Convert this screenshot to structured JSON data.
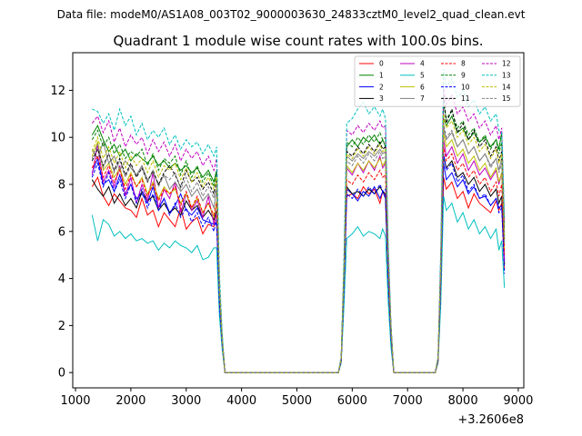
{
  "chart_data": {
    "type": "line",
    "suptitle": "Data file: modeM0/AS1A08_003T02_9000003630_24833cztM0_level2_quad_clean.evt",
    "title": "Quadrant 1 module wise count rates with 100.0s bins.",
    "xlabel": "",
    "ylabel": "",
    "x_offset_label": "+3.2606e8",
    "xlim": [
      950,
      9100
    ],
    "ylim": [
      -0.65,
      13.6
    ],
    "xticks": [
      1000,
      2000,
      3000,
      4000,
      5000,
      6000,
      7000,
      8000,
      9000
    ],
    "yticks": [
      0,
      2,
      4,
      6,
      8,
      10,
      12
    ],
    "x": [
      1300,
      1400,
      1500,
      1600,
      1700,
      1800,
      1900,
      2000,
      2100,
      2200,
      2300,
      2400,
      2500,
      2600,
      2700,
      2800,
      2900,
      3000,
      3100,
      3200,
      3300,
      3400,
      3500,
      3550,
      3600,
      3650,
      3700,
      3750,
      3800,
      5700,
      5750,
      5800,
      5850,
      5900,
      6000,
      6100,
      6200,
      6300,
      6400,
      6500,
      6550,
      6600,
      6650,
      6700,
      6750,
      7400,
      7500,
      7550,
      7600,
      7650,
      7700,
      7800,
      7900,
      8000,
      8100,
      8200,
      8300,
      8400,
      8500,
      8600,
      8650,
      8700,
      8750
    ],
    "legend": {
      "position": "top-right",
      "columns": 4
    },
    "series": [
      {
        "name": "0",
        "color": "#ff0000",
        "dash": false,
        "values": [
          7.9,
          8.3,
          7.5,
          7.1,
          7.6,
          7.3,
          7.0,
          6.9,
          6.6,
          7.4,
          6.7,
          6.9,
          6.2,
          6.8,
          6.5,
          6.2,
          7.0,
          6.1,
          6.4,
          6.6,
          5.9,
          6.3,
          6.2,
          6.8,
          3.0,
          1.2,
          0.0,
          0.0,
          0.0,
          0.0,
          0.0,
          0.5,
          3.5,
          7.5,
          7.6,
          7.4,
          7.9,
          7.6,
          7.8,
          7.2,
          7.7,
          7.5,
          4.0,
          1.5,
          0.0,
          0.0,
          0.0,
          0.5,
          3.5,
          8.3,
          7.8,
          8.1,
          7.4,
          7.7,
          7.0,
          7.6,
          7.2,
          7.0,
          6.8,
          7.3,
          6.9,
          7.2,
          4.4
        ]
      },
      {
        "name": "1",
        "color": "#008000",
        "dash": false,
        "values": [
          10.1,
          10.5,
          9.9,
          9.4,
          9.7,
          9.2,
          9.5,
          9.0,
          9.3,
          9.1,
          8.9,
          9.2,
          8.8,
          9.0,
          8.7,
          8.9,
          8.6,
          8.8,
          8.5,
          8.7,
          8.3,
          8.6,
          8.1,
          8.6,
          3.6,
          1.5,
          0.0,
          0.0,
          0.0,
          0.0,
          0.0,
          0.6,
          4.3,
          9.6,
          9.9,
          9.6,
          10.0,
          9.8,
          10.1,
          9.7,
          9.9,
          9.6,
          5.0,
          2.0,
          0.0,
          0.0,
          0.0,
          0.6,
          4.7,
          10.8,
          10.5,
          10.9,
          10.2,
          10.4,
          9.9,
          10.2,
          9.8,
          10.0,
          9.6,
          9.9,
          9.5,
          10.2,
          5.8
        ]
      },
      {
        "name": "2",
        "color": "#0000ff",
        "dash": false,
        "values": [
          8.5,
          9.1,
          8.0,
          8.2,
          7.7,
          8.4,
          7.6,
          8.0,
          7.4,
          7.6,
          7.2,
          7.9,
          7.0,
          7.4,
          6.8,
          7.1,
          7.6,
          6.9,
          6.7,
          7.0,
          6.5,
          6.4,
          6.3,
          6.4,
          3.0,
          1.2,
          0.0,
          0.0,
          0.0,
          0.0,
          0.0,
          0.5,
          3.6,
          7.8,
          7.6,
          7.3,
          7.7,
          7.5,
          7.9,
          7.4,
          7.7,
          7.4,
          4.0,
          1.5,
          0.0,
          0.0,
          0.0,
          0.5,
          3.7,
          8.9,
          8.2,
          8.5,
          7.9,
          8.2,
          7.6,
          7.9,
          7.4,
          7.5,
          7.1,
          7.4,
          7.0,
          7.1,
          4.8
        ]
      },
      {
        "name": "3",
        "color": "#000000",
        "dash": false,
        "values": [
          8.2,
          7.8,
          7.5,
          7.9,
          7.2,
          7.6,
          7.1,
          7.4,
          7.0,
          7.7,
          7.3,
          7.5,
          6.9,
          7.2,
          6.8,
          7.0,
          6.7,
          7.3,
          6.9,
          7.1,
          6.6,
          6.9,
          6.5,
          6.9,
          3.1,
          1.2,
          0.0,
          0.0,
          0.0,
          0.0,
          0.0,
          0.5,
          3.6,
          7.9,
          7.6,
          7.7,
          7.5,
          7.8,
          7.6,
          7.9,
          7.7,
          7.6,
          4.0,
          1.5,
          0.0,
          0.0,
          0.0,
          0.5,
          3.8,
          9.2,
          8.7,
          9.0,
          8.3,
          8.5,
          8.0,
          8.3,
          7.7,
          8.0,
          7.5,
          7.8,
          7.2,
          7.5,
          4.6
        ]
      },
      {
        "name": "4",
        "color": "#bf00bf",
        "dash": false,
        "values": [
          8.4,
          9.7,
          8.1,
          8.6,
          7.9,
          8.8,
          7.5,
          8.3,
          7.2,
          8.0,
          7.3,
          8.5,
          7.0,
          7.8,
          7.4,
          8.1,
          6.8,
          7.6,
          6.9,
          7.3,
          6.6,
          7.5,
          6.3,
          6.8,
          3.1,
          1.2,
          0.0,
          0.0,
          0.0,
          0.0,
          0.0,
          0.5,
          3.8,
          8.7,
          8.4,
          8.9,
          8.5,
          9.0,
          8.6,
          9.2,
          8.7,
          8.9,
          4.5,
          1.7,
          0.0,
          0.0,
          0.0,
          0.5,
          4.0,
          9.9,
          9.2,
          9.6,
          8.9,
          9.3,
          8.6,
          9.0,
          8.4,
          8.7,
          8.2,
          8.6,
          8.0,
          8.5,
          4.7
        ]
      },
      {
        "name": "5",
        "color": "#00bfbf",
        "dash": false,
        "values": [
          6.7,
          5.6,
          6.5,
          6.3,
          5.8,
          6.0,
          5.7,
          5.9,
          5.6,
          5.7,
          5.5,
          5.6,
          5.2,
          5.5,
          5.3,
          5.6,
          5.4,
          5.3,
          5.1,
          5.4,
          4.8,
          4.9,
          5.3,
          5.3,
          2.4,
          1.0,
          0.0,
          0.0,
          0.0,
          0.0,
          0.0,
          0.4,
          2.8,
          5.7,
          5.9,
          6.2,
          5.8,
          6.0,
          5.9,
          5.7,
          6.1,
          5.8,
          3.0,
          1.1,
          0.0,
          0.0,
          0.0,
          0.4,
          2.9,
          7.5,
          6.9,
          7.2,
          6.4,
          6.8,
          6.1,
          6.5,
          5.9,
          6.2,
          5.7,
          6.1,
          5.2,
          5.6,
          3.6
        ]
      },
      {
        "name": "6",
        "color": "#bfbf00",
        "dash": false,
        "values": [
          9.2,
          9.8,
          8.6,
          8.9,
          8.3,
          8.7,
          8.0,
          8.5,
          7.9,
          8.3,
          7.6,
          8.1,
          7.4,
          7.9,
          7.6,
          7.8,
          7.2,
          7.6,
          7.0,
          7.4,
          6.8,
          7.2,
          6.6,
          7.3,
          3.3,
          1.3,
          0.0,
          0.0,
          0.0,
          0.0,
          0.0,
          0.5,
          3.9,
          8.8,
          8.5,
          8.9,
          8.6,
          9.0,
          8.7,
          9.1,
          8.8,
          9.0,
          4.6,
          1.8,
          0.0,
          0.0,
          0.0,
          0.5,
          4.1,
          10.2,
          9.6,
          9.9,
          9.2,
          9.5,
          8.9,
          9.2,
          8.6,
          8.9,
          8.3,
          8.7,
          8.1,
          8.5,
          5.2
        ]
      },
      {
        "name": "7",
        "color": "#7f7f7f",
        "dash": false,
        "values": [
          9.5,
          9.1,
          9.8,
          8.9,
          9.2,
          8.6,
          9.0,
          8.7,
          8.4,
          8.8,
          8.2,
          8.5,
          8.0,
          8.4,
          7.8,
          8.1,
          7.7,
          8.0,
          7.5,
          7.8,
          7.3,
          7.6,
          7.0,
          7.8,
          3.4,
          1.4,
          0.0,
          0.0,
          0.0,
          0.0,
          0.0,
          0.5,
          4.1,
          9.2,
          9.0,
          9.3,
          9.1,
          9.4,
          9.2,
          9.5,
          9.3,
          9.4,
          4.7,
          1.8,
          0.0,
          0.0,
          0.0,
          0.5,
          4.3,
          10.4,
          9.9,
          10.2,
          9.6,
          9.9,
          9.3,
          9.6,
          9.0,
          9.3,
          8.8,
          9.1,
          8.6,
          9.1,
          5.4
        ]
      },
      {
        "name": "8",
        "color": "#ff0000",
        "dash": true,
        "values": [
          8.7,
          9.2,
          8.3,
          8.8,
          8.1,
          8.6,
          7.8,
          8.4,
          7.9,
          8.2,
          7.5,
          8.0,
          7.3,
          7.8,
          7.6,
          7.9,
          7.1,
          7.7,
          7.0,
          7.5,
          6.8,
          7.2,
          6.7,
          7.2,
          3.3,
          1.3,
          0.0,
          0.0,
          0.0,
          0.0,
          0.0,
          0.5,
          3.8,
          8.2,
          8.0,
          8.4,
          8.1,
          8.5,
          8.2,
          8.6,
          8.3,
          8.4,
          4.2,
          1.6,
          0.0,
          0.0,
          0.0,
          0.5,
          4.0,
          9.6,
          9.0,
          9.3,
          8.6,
          8.9,
          8.3,
          8.6,
          8.0,
          8.3,
          7.7,
          8.1,
          7.5,
          8.0,
          5.0
        ]
      },
      {
        "name": "9",
        "color": "#008000",
        "dash": true,
        "values": [
          9.9,
          10.3,
          9.6,
          10.0,
          9.3,
          9.7,
          9.1,
          9.4,
          9.2,
          9.5,
          8.8,
          9.3,
          8.6,
          9.1,
          8.9,
          9.2,
          8.4,
          9.0,
          8.3,
          8.8,
          8.1,
          8.5,
          7.9,
          8.5,
          3.7,
          1.5,
          0.0,
          0.0,
          0.0,
          0.0,
          0.0,
          0.6,
          4.4,
          9.8,
          9.6,
          10.0,
          9.7,
          10.1,
          9.8,
          10.2,
          9.9,
          10.0,
          5.1,
          2.0,
          0.0,
          0.0,
          0.0,
          0.6,
          4.8,
          11.4,
          10.8,
          11.1,
          10.4,
          10.7,
          10.1,
          10.4,
          9.8,
          10.1,
          9.5,
          9.9,
          9.3,
          9.8,
          6.1
        ]
      },
      {
        "name": "10",
        "color": "#0000ff",
        "dash": true,
        "values": [
          8.3,
          8.9,
          7.9,
          8.5,
          7.7,
          8.2,
          7.4,
          8.0,
          7.2,
          7.8,
          7.0,
          7.6,
          6.9,
          7.4,
          6.7,
          7.2,
          6.6,
          7.0,
          6.4,
          6.8,
          6.2,
          6.6,
          6.0,
          6.5,
          2.9,
          1.2,
          0.0,
          0.0,
          0.0,
          0.0,
          0.0,
          0.5,
          3.5,
          7.6,
          7.4,
          7.8,
          7.5,
          7.9,
          7.6,
          8.0,
          7.7,
          7.8,
          4.0,
          1.5,
          0.0,
          0.0,
          0.0,
          0.5,
          3.7,
          9.3,
          8.6,
          8.9,
          8.1,
          8.4,
          7.7,
          8.0,
          7.4,
          7.6,
          7.1,
          7.4,
          6.8,
          7.0,
          4.2
        ]
      },
      {
        "name": "11",
        "color": "#000000",
        "dash": true,
        "values": [
          9.0,
          9.5,
          8.8,
          9.3,
          8.6,
          9.1,
          8.4,
          8.9,
          8.3,
          8.7,
          8.1,
          8.6,
          8.0,
          8.5,
          8.8,
          8.4,
          7.9,
          8.6,
          8.1,
          8.3,
          7.8,
          8.1,
          7.6,
          8.2,
          3.6,
          1.4,
          0.0,
          0.0,
          0.0,
          0.0,
          0.0,
          0.6,
          4.2,
          9.4,
          9.2,
          9.6,
          9.3,
          9.7,
          9.4,
          9.8,
          9.5,
          9.6,
          4.9,
          1.9,
          0.0,
          0.0,
          0.0,
          0.6,
          4.5,
          11.8,
          10.6,
          11.2,
          10.2,
          10.6,
          9.9,
          10.3,
          9.6,
          9.9,
          9.2,
          9.6,
          9.0,
          9.4,
          5.6
        ]
      },
      {
        "name": "12",
        "color": "#bf00bf",
        "dash": true,
        "values": [
          10.6,
          10.9,
          10.2,
          10.7,
          9.8,
          10.4,
          9.6,
          10.1,
          9.7,
          10.0,
          9.3,
          9.9,
          9.4,
          9.8,
          9.2,
          9.7,
          9.0,
          9.5,
          9.1,
          9.4,
          8.8,
          9.2,
          8.6,
          9.1,
          4.0,
          1.6,
          0.0,
          0.0,
          0.0,
          0.0,
          0.0,
          0.6,
          4.6,
          10.3,
          10.1,
          10.5,
          10.2,
          10.6,
          10.3,
          10.7,
          10.4,
          10.5,
          5.3,
          2.0,
          0.0,
          0.0,
          0.0,
          0.6,
          5.0,
          12.1,
          11.4,
          11.8,
          11.0,
          11.3,
          10.7,
          11.0,
          10.4,
          10.7,
          10.1,
          10.5,
          9.9,
          10.4,
          6.4
        ]
      },
      {
        "name": "13",
        "color": "#00bfbf",
        "dash": true,
        "values": [
          11.2,
          11.1,
          10.6,
          11.0,
          10.3,
          11.2,
          10.5,
          10.9,
          10.1,
          10.6,
          9.9,
          10.3,
          10.0,
          10.4,
          9.7,
          10.1,
          9.5,
          9.9,
          9.6,
          9.8,
          9.3,
          9.7,
          9.2,
          9.6,
          4.2,
          1.7,
          0.0,
          0.0,
          0.0,
          0.0,
          0.0,
          0.7,
          4.9,
          10.6,
          10.8,
          11.2,
          11.5,
          11.0,
          11.3,
          10.9,
          11.2,
          10.8,
          5.6,
          2.1,
          0.0,
          0.0,
          0.0,
          0.7,
          5.3,
          12.9,
          12.1,
          12.5,
          11.7,
          12.0,
          11.3,
          11.6,
          11.0,
          11.3,
          10.7,
          11.0,
          10.3,
          10.2,
          6.6
        ]
      },
      {
        "name": "14",
        "color": "#bfbf00",
        "dash": true,
        "values": [
          9.4,
          10.0,
          9.1,
          9.6,
          8.9,
          9.4,
          8.7,
          9.2,
          8.8,
          9.1,
          8.5,
          9.0,
          8.3,
          8.8,
          8.6,
          8.9,
          8.2,
          8.7,
          8.1,
          8.5,
          7.9,
          8.3,
          7.8,
          8.3,
          3.6,
          1.4,
          0.0,
          0.0,
          0.0,
          0.0,
          0.0,
          0.6,
          4.2,
          9.3,
          9.1,
          9.5,
          9.2,
          9.6,
          9.3,
          9.7,
          9.4,
          9.5,
          4.8,
          1.9,
          0.0,
          0.0,
          0.0,
          0.6,
          4.5,
          11.0,
          10.4,
          10.7,
          10.0,
          10.3,
          9.7,
          10.0,
          9.4,
          9.7,
          9.1,
          9.5,
          8.9,
          9.3,
          5.7
        ]
      },
      {
        "name": "15",
        "color": "#7f7f7f",
        "dash": true,
        "values": [
          9.1,
          9.7,
          8.7,
          9.3,
          8.5,
          9.0,
          8.3,
          8.8,
          8.4,
          8.7,
          8.1,
          8.6,
          7.9,
          8.4,
          8.2,
          8.5,
          7.8,
          8.3,
          7.7,
          8.1,
          7.5,
          7.9,
          7.4,
          7.9,
          3.5,
          1.4,
          0.0,
          0.0,
          0.0,
          0.0,
          0.0,
          0.6,
          4.0,
          9.0,
          8.8,
          9.2,
          8.9,
          9.3,
          9.0,
          9.4,
          9.1,
          9.2,
          4.7,
          1.8,
          0.0,
          0.0,
          0.0,
          0.6,
          4.3,
          10.6,
          10.0,
          10.3,
          9.6,
          9.9,
          9.3,
          9.6,
          9.0,
          9.3,
          8.7,
          9.1,
          8.5,
          8.9,
          5.5
        ]
      }
    ]
  }
}
